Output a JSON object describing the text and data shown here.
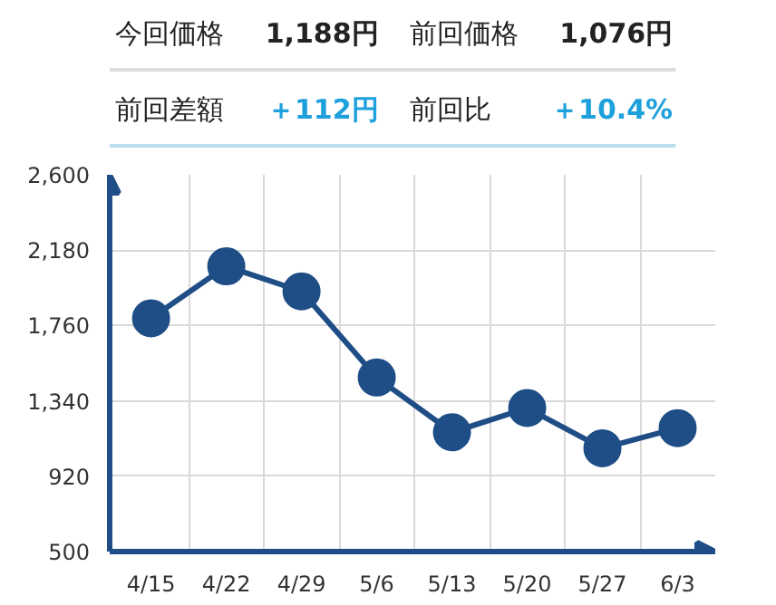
{
  "chart_data": [
    {
      "type": "other",
      "annotations": [
        "今回価格",
        "1,188円",
        "前回価格",
        "1,076円",
        "前回差額",
        "＋112円",
        "前回比",
        "＋10.4%"
      ]
    },
    {
      "type": "line",
      "categories": [
        "4/15",
        "4/22",
        "4/29",
        "5/6",
        "5/13",
        "5/20",
        "5/27",
        "6/3"
      ],
      "series": [
        {
          "color": "#1f4e87",
          "values": [
            1800,
            2090,
            1950,
            1470,
            1165,
            1300,
            1076,
            1188
          ]
        }
      ],
      "ylim": [
        500,
        2600
      ],
      "yticks": [
        500,
        920,
        {
          "value": 1340,
          "label": "1,340"
        },
        {
          "value": 1760,
          "label": "1,760"
        },
        {
          "value": 2180,
          "label": "2,180"
        },
        {
          "value": 2600,
          "label": "2,600"
        }
      ],
      "grid": true,
      "marker": "circle",
      "line_style": "solid"
    }
  ]
}
